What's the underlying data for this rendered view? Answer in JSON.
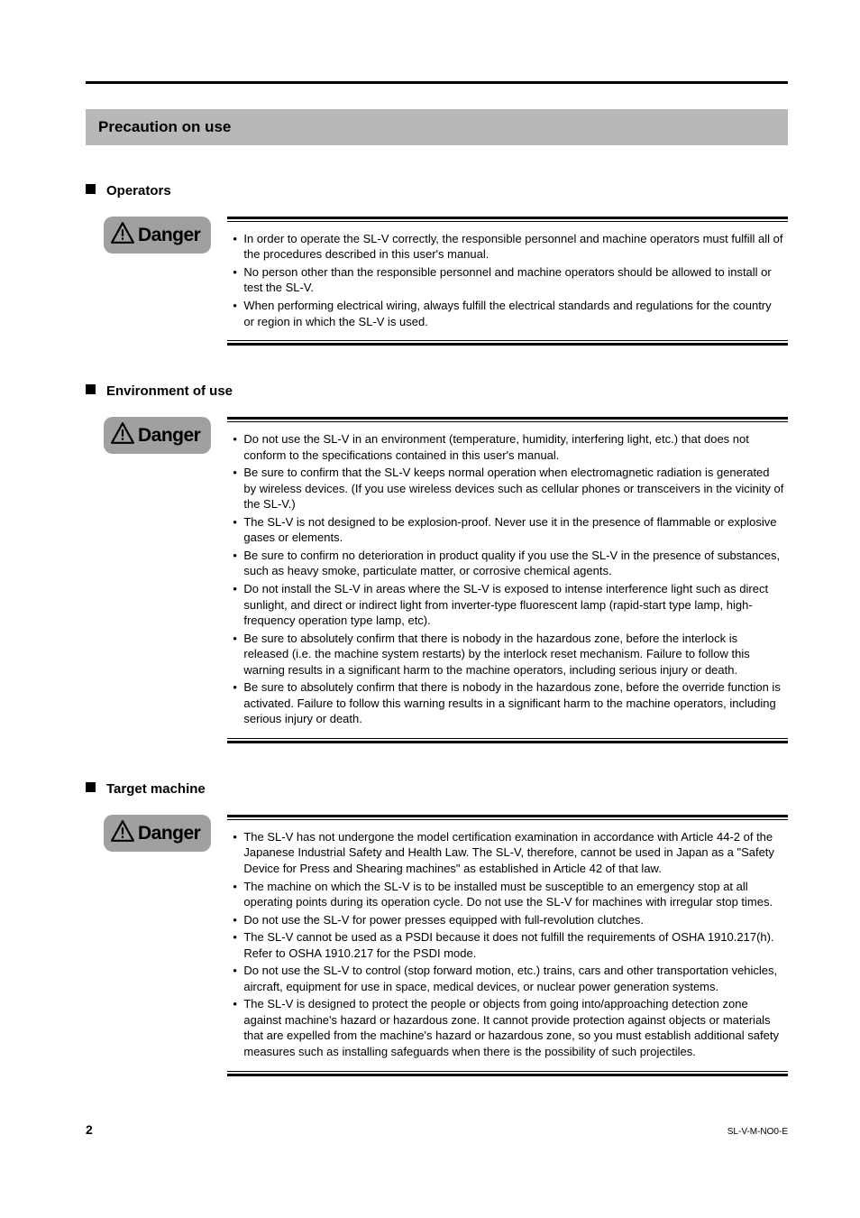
{
  "header": {
    "title": "Precaution on use"
  },
  "sections": [
    {
      "title": "Operators",
      "badge": "Danger",
      "items": [
        "In order to operate the SL-V correctly, the responsible personnel and machine operators must fulfill all of the procedures described in this user's manual.",
        "No person other than the responsible personnel and machine operators should be allowed to install or test the SL-V.",
        "When performing electrical wiring, always fulfill the electrical standards and regulations for the country or region in which the SL-V is used."
      ]
    },
    {
      "title": "Environment of use",
      "badge": "Danger",
      "items": [
        "Do not use the SL-V in an environment (temperature, humidity, interfering light, etc.) that does not conform to the specifications contained in this user's manual.",
        "Be sure to confirm that the SL-V keeps normal operation when electromagnetic radiation is generated by wireless devices. (If you use wireless devices such as cellular phones or transceivers in the vicinity of the SL-V.)",
        "The SL-V is not designed to be explosion-proof. Never use it in the presence of flammable or explosive gases or elements.",
        "Be sure to confirm no deterioration in product quality if you use the SL-V in the presence of substances, such as heavy smoke, particulate matter, or corrosive chemical agents.",
        "Do not install the SL-V in areas where the SL-V is exposed to intense interference light such as direct sunlight, and direct or indirect light from inverter-type fluorescent lamp (rapid-start type lamp, high-frequency operation type lamp, etc).",
        "Be sure to absolutely confirm that there is nobody in the hazardous zone, before the interlock is released (i.e. the machine system restarts) by the interlock reset mechanism. Failure to follow this warning results in a significant harm to the machine operators, including serious injury or death.",
        "Be sure to absolutely confirm that there is nobody in the hazardous zone, before the override function is activated. Failure to follow this warning results in a significant harm to the machine operators, including serious injury or death."
      ]
    },
    {
      "title": "Target machine",
      "badge": "Danger",
      "items": [
        "The SL-V has not undergone the model certification examination in accordance with Article 44-2 of the Japanese Industrial Safety and Health Law. The SL-V, therefore, cannot be used in Japan as a \"Safety Device for Press and Shearing machines\" as established in Article 42 of that law.",
        "The machine on which the SL-V is to be installed must be susceptible to an emergency stop at all operating points during its operation cycle. Do not use the SL-V for machines with irregular stop times.",
        "Do not use the SL-V for power presses equipped with full-revolution clutches.",
        "The SL-V cannot be used as a PSDI because it does not fulfill the requirements of OSHA 1910.217(h). Refer to OSHA 1910.217 for the PSDI mode.",
        "Do not use the SL-V to control (stop forward motion, etc.) trains, cars and other transportation vehicles, aircraft, equipment for use in space, medical devices, or nuclear power generation systems.",
        "The SL-V is designed to protect the people or objects from going into/approaching detection zone against machine's hazard or hazardous zone.  It cannot provide protection against objects or materials that are expelled from the machine's hazard or hazardous zone, so you must establish additional safety measures such as installing safeguards when there is the possibility of such projectiles."
      ]
    }
  ],
  "footer": {
    "page": "2",
    "docid": "SL-V-M-NO0-E"
  },
  "colors": {
    "header_bg": "#b8b8b8",
    "badge_bg": "#a0a0a0",
    "text": "#000000",
    "page_bg": "#ffffff"
  }
}
